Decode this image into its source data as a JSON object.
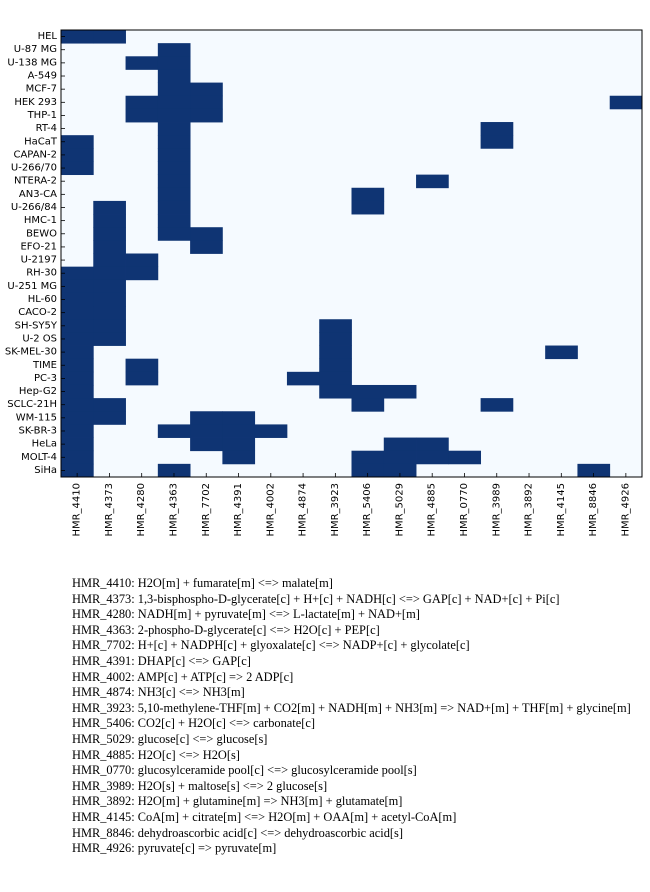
{
  "chart_data": {
    "type": "heatmap",
    "rows": [
      "HEL",
      "U-87 MG",
      "U-138 MG",
      "A-549",
      "MCF-7",
      "HEK 293",
      "THP-1",
      "RT-4",
      "HaCaT",
      "CAPAN-2",
      "U-266/70",
      "NTERA-2",
      "AN3-CA",
      "U-266/84",
      "HMC-1",
      "BEWO",
      "EFO-21",
      "U-2197",
      "RH-30",
      "U-251 MG",
      "HL-60",
      "CACO-2",
      "SH-SY5Y",
      "U-2 OS",
      "SK-MEL-30",
      "TIME",
      "PC-3",
      "Hep-G2",
      "SCLC-21H",
      "WM-115",
      "SK-BR-3",
      "HeLa",
      "MOLT-4",
      "SiHa"
    ],
    "columns": [
      "HMR_4410",
      "HMR_4373",
      "HMR_4280",
      "HMR_4363",
      "HMR_7702",
      "HMR_4391",
      "HMR_4002",
      "HMR_4874",
      "HMR_3923",
      "HMR_5406",
      "HMR_5029",
      "HMR_4885",
      "HMR_0770",
      "HMR_3989",
      "HMR_3892",
      "HMR_4145",
      "HMR_8846",
      "HMR_4926"
    ],
    "values": [
      [
        1,
        1,
        0,
        0,
        0,
        0,
        0,
        0,
        0,
        0,
        0,
        0,
        0,
        0,
        0,
        0,
        0,
        0
      ],
      [
        0,
        0,
        0,
        1,
        0,
        0,
        0,
        0,
        0,
        0,
        0,
        0,
        0,
        0,
        0,
        0,
        0,
        0
      ],
      [
        0,
        0,
        1,
        1,
        0,
        0,
        0,
        0,
        0,
        0,
        0,
        0,
        0,
        0,
        0,
        0,
        0,
        0
      ],
      [
        0,
        0,
        0,
        1,
        0,
        0,
        0,
        0,
        0,
        0,
        0,
        0,
        0,
        0,
        0,
        0,
        0,
        0
      ],
      [
        0,
        0,
        0,
        1,
        1,
        0,
        0,
        0,
        0,
        0,
        0,
        0,
        0,
        0,
        0,
        0,
        0,
        0
      ],
      [
        0,
        0,
        1,
        1,
        1,
        0,
        0,
        0,
        0,
        0,
        0,
        0,
        0,
        0,
        0,
        0,
        0,
        1
      ],
      [
        0,
        0,
        1,
        1,
        1,
        0,
        0,
        0,
        0,
        0,
        0,
        0,
        0,
        0,
        0,
        0,
        0,
        0
      ],
      [
        0,
        0,
        0,
        1,
        0,
        0,
        0,
        0,
        0,
        0,
        0,
        0,
        0,
        1,
        0,
        0,
        0,
        0
      ],
      [
        1,
        0,
        0,
        1,
        0,
        0,
        0,
        0,
        0,
        0,
        0,
        0,
        0,
        1,
        0,
        0,
        0,
        0
      ],
      [
        1,
        0,
        0,
        1,
        0,
        0,
        0,
        0,
        0,
        0,
        0,
        0,
        0,
        0,
        0,
        0,
        0,
        0
      ],
      [
        1,
        0,
        0,
        1,
        0,
        0,
        0,
        0,
        0,
        0,
        0,
        0,
        0,
        0,
        0,
        0,
        0,
        0
      ],
      [
        0,
        0,
        0,
        1,
        0,
        0,
        0,
        0,
        0,
        0,
        0,
        1,
        0,
        0,
        0,
        0,
        0,
        0
      ],
      [
        0,
        0,
        0,
        1,
        0,
        0,
        0,
        0,
        0,
        1,
        0,
        0,
        0,
        0,
        0,
        0,
        0,
        0
      ],
      [
        0,
        1,
        0,
        1,
        0,
        0,
        0,
        0,
        0,
        1,
        0,
        0,
        0,
        0,
        0,
        0,
        0,
        0
      ],
      [
        0,
        1,
        0,
        1,
        0,
        0,
        0,
        0,
        0,
        0,
        0,
        0,
        0,
        0,
        0,
        0,
        0,
        0
      ],
      [
        0,
        1,
        0,
        1,
        1,
        0,
        0,
        0,
        0,
        0,
        0,
        0,
        0,
        0,
        0,
        0,
        0,
        0
      ],
      [
        0,
        1,
        0,
        0,
        1,
        0,
        0,
        0,
        0,
        0,
        0,
        0,
        0,
        0,
        0,
        0,
        0,
        0
      ],
      [
        0,
        1,
        1,
        0,
        0,
        0,
        0,
        0,
        0,
        0,
        0,
        0,
        0,
        0,
        0,
        0,
        0,
        0
      ],
      [
        1,
        1,
        1,
        0,
        0,
        0,
        0,
        0,
        0,
        0,
        0,
        0,
        0,
        0,
        0,
        0,
        0,
        0
      ],
      [
        1,
        1,
        0,
        0,
        0,
        0,
        0,
        0,
        0,
        0,
        0,
        0,
        0,
        0,
        0,
        0,
        0,
        0
      ],
      [
        1,
        1,
        0,
        0,
        0,
        0,
        0,
        0,
        0,
        0,
        0,
        0,
        0,
        0,
        0,
        0,
        0,
        0
      ],
      [
        1,
        1,
        0,
        0,
        0,
        0,
        0,
        0,
        0,
        0,
        0,
        0,
        0,
        0,
        0,
        0,
        0,
        0
      ],
      [
        1,
        1,
        0,
        0,
        0,
        0,
        0,
        0,
        1,
        0,
        0,
        0,
        0,
        0,
        0,
        0,
        0,
        0
      ],
      [
        1,
        1,
        0,
        0,
        0,
        0,
        0,
        0,
        1,
        0,
        0,
        0,
        0,
        0,
        0,
        0,
        0,
        0
      ],
      [
        1,
        0,
        0,
        0,
        0,
        0,
        0,
        0,
        1,
        0,
        0,
        0,
        0,
        0,
        0,
        1,
        0,
        0
      ],
      [
        1,
        0,
        1,
        0,
        0,
        0,
        0,
        0,
        1,
        0,
        0,
        0,
        0,
        0,
        0,
        0,
        0,
        0
      ],
      [
        1,
        0,
        1,
        0,
        0,
        0,
        0,
        1,
        1,
        0,
        0,
        0,
        0,
        0,
        0,
        0,
        0,
        0
      ],
      [
        1,
        0,
        0,
        0,
        0,
        0,
        0,
        0,
        1,
        1,
        1,
        0,
        0,
        0,
        0,
        0,
        0,
        0
      ],
      [
        1,
        1,
        0,
        0,
        0,
        0,
        0,
        0,
        0,
        1,
        0,
        0,
        0,
        1,
        0,
        0,
        0,
        0
      ],
      [
        1,
        1,
        0,
        0,
        1,
        1,
        0,
        0,
        0,
        0,
        0,
        0,
        0,
        0,
        0,
        0,
        0,
        0
      ],
      [
        1,
        0,
        0,
        1,
        1,
        1,
        1,
        0,
        0,
        0,
        0,
        0,
        0,
        0,
        0,
        0,
        0,
        0
      ],
      [
        1,
        0,
        0,
        0,
        1,
        1,
        0,
        0,
        0,
        0,
        1,
        1,
        0,
        0,
        0,
        0,
        0,
        0
      ],
      [
        1,
        0,
        0,
        0,
        0,
        1,
        0,
        0,
        0,
        1,
        1,
        1,
        1,
        0,
        0,
        0,
        0,
        0
      ],
      [
        1,
        0,
        0,
        1,
        0,
        0,
        0,
        0,
        0,
        1,
        1,
        0,
        0,
        0,
        0,
        0,
        1,
        0
      ]
    ],
    "colors": {
      "on": "#0f3473",
      "off": "#f5faff",
      "frame": "#000000"
    },
    "title": "",
    "xlabel": "",
    "ylabel": ""
  },
  "legend": [
    {
      "id": "HMR_4410",
      "text": "HMR_4410: H2O[m] + fumarate[m] <=> malate[m]"
    },
    {
      "id": "HMR_4373",
      "text": "HMR_4373: 1,3-bisphospho-D-glycerate[c] + H+[c] + NADH[c] <=> GAP[c] + NAD+[c] + Pi[c]"
    },
    {
      "id": "HMR_4280",
      "text": "HMR_4280: NADH[m] + pyruvate[m] <=> L-lactate[m] + NAD+[m]"
    },
    {
      "id": "HMR_4363",
      "text": "HMR_4363: 2-phospho-D-glycerate[c] <=> H2O[c] + PEP[c]"
    },
    {
      "id": "HMR_7702",
      "text": "HMR_7702: H+[c] + NADPH[c] + glyoxalate[c] <=> NADP+[c] + glycolate[c]"
    },
    {
      "id": "HMR_4391",
      "text": "HMR_4391: DHAP[c] <=> GAP[c]"
    },
    {
      "id": "HMR_4002",
      "text": "HMR_4002: AMP[c] + ATP[c] => 2 ADP[c]"
    },
    {
      "id": "HMR_4874",
      "text": "HMR_4874: NH3[c] <=> NH3[m]"
    },
    {
      "id": "HMR_3923",
      "text": "HMR_3923: 5,10-methylene-THF[m] + CO2[m] + NADH[m] + NH3[m] => NAD+[m] + THF[m] + glycine[m]"
    },
    {
      "id": "HMR_5406",
      "text": "HMR_5406: CO2[c] + H2O[c] <=> carbonate[c]"
    },
    {
      "id": "HMR_5029",
      "text": "HMR_5029: glucose[c] <=> glucose[s]"
    },
    {
      "id": "HMR_4885",
      "text": "HMR_4885: H2O[c] <=> H2O[s]"
    },
    {
      "id": "HMR_0770",
      "text": "HMR_0770: glucosylceramide pool[c] <=> glucosylceramide pool[s]"
    },
    {
      "id": "HMR_3989",
      "text": "HMR_3989: H2O[s] + maltose[s] <=> 2 glucose[s]"
    },
    {
      "id": "HMR_3892",
      "text": "HMR_3892: H2O[m] + glutamine[m] => NH3[m] + glutamate[m]"
    },
    {
      "id": "HMR_4145",
      "text": "HMR_4145: CoA[m] + citrate[m] <=> H2O[m] + OAA[m] + acetyl-CoA[m]"
    },
    {
      "id": "HMR_8846",
      "text": "HMR_8846: dehydroascorbic acid[c] <=> dehydroascorbic acid[s]"
    },
    {
      "id": "HMR_4926",
      "text": "HMR_4926: pyruvate[c] => pyruvate[m]"
    }
  ]
}
